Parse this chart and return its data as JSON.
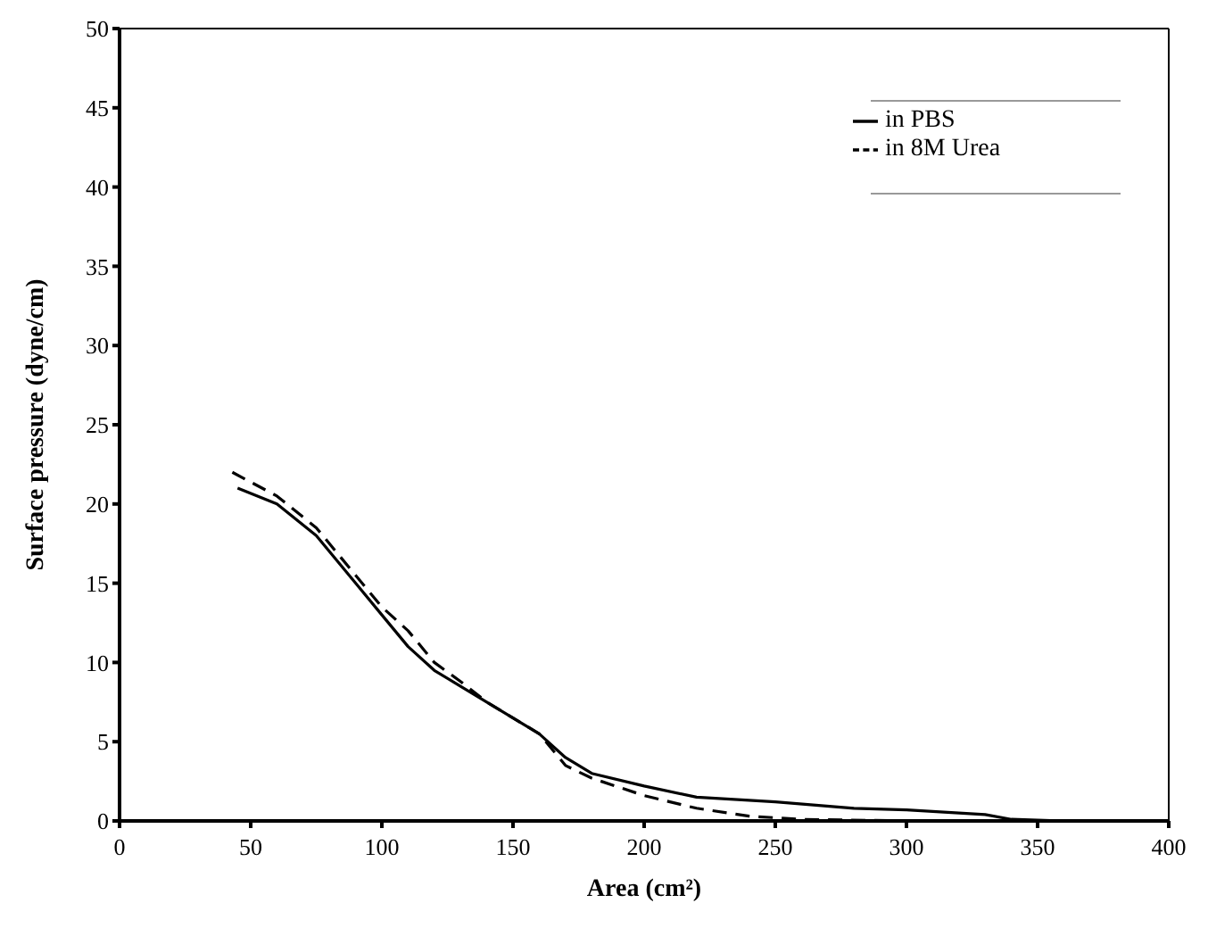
{
  "chart_data": {
    "type": "line",
    "xlabel": "Area (cm²)",
    "ylabel": "Surface pressure (dyne/cm)",
    "xlim": [
      0,
      400
    ],
    "xticks": [
      0,
      50,
      100,
      150,
      200,
      250,
      300,
      350,
      400
    ],
    "ylim": [
      0,
      50
    ],
    "yticks": [
      0,
      5,
      10,
      15,
      20,
      25,
      30,
      35,
      40,
      45,
      50
    ],
    "grid": false,
    "legend": "top right",
    "marker": "none",
    "series": [
      {
        "name": "in PBS",
        "color": "#000000",
        "line_style": "solid",
        "x": [
          45,
          60,
          75,
          90,
          100,
          110,
          120,
          130,
          140,
          150,
          160,
          170,
          180,
          200,
          220,
          250,
          280,
          300,
          330,
          340,
          360,
          400
        ],
        "values": [
          21,
          20,
          18,
          15,
          13,
          11,
          9.5,
          8.5,
          7.5,
          6.5,
          5.5,
          4,
          3,
          2.2,
          1.5,
          1.2,
          0.8,
          0.7,
          0.4,
          0.1,
          0,
          0
        ]
      },
      {
        "name": "in 8M Urea",
        "color": "#000000",
        "line_style": "dashed",
        "x": [
          43,
          60,
          75,
          90,
          100,
          110,
          120,
          130,
          140,
          150,
          160,
          170,
          180,
          200,
          220,
          240,
          260,
          300,
          400
        ],
        "values": [
          22,
          20.5,
          18.5,
          15.5,
          13.5,
          12,
          10,
          8.8,
          7.5,
          6.5,
          5.5,
          3.5,
          2.7,
          1.6,
          0.8,
          0.3,
          0.1,
          0,
          0
        ]
      }
    ]
  }
}
